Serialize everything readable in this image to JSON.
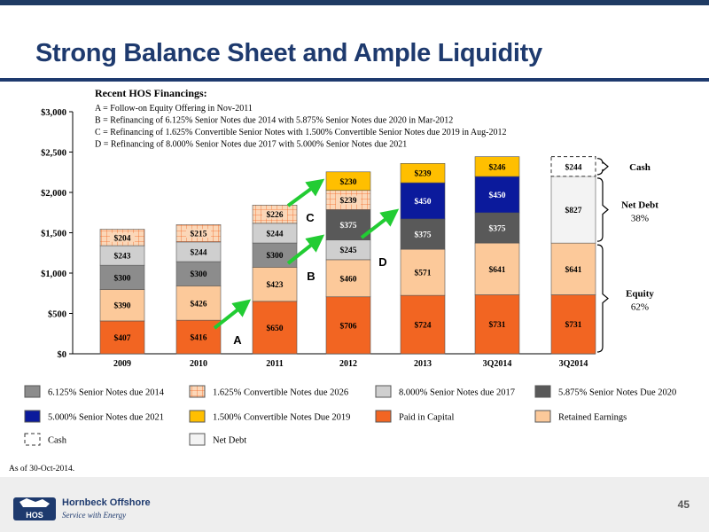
{
  "slide": {
    "title": "Strong Balance Sheet and Ample Liquidity",
    "footnote": "As of 30-Oct-2014.",
    "page_number": "45",
    "company": "Hornbeck Offshore",
    "tagline": "Service with Energy",
    "logo_text": "HOS"
  },
  "colors": {
    "paid_in_capital": "#f26522",
    "retained_earnings": "#fcc99a",
    "sn_6125": "#8c8c8c",
    "conv_1625": "#fbd7b8",
    "sn_8000": "#cfcfcf",
    "sn_5875": "#595959",
    "sn_5000": "#0b1a9c",
    "conv_1500": "#ffbf00",
    "net_debt": "#f3f3f3",
    "arrow": "#22cc33",
    "title": "#1e3a6e"
  },
  "chart_data": {
    "type": "bar",
    "stacked": true,
    "categories": [
      "2009",
      "2010",
      "2011",
      "2012",
      "2013",
      "3Q2014",
      "3Q2014"
    ],
    "ylim": [
      0,
      3000
    ],
    "yticks": [
      0,
      500,
      1000,
      1500,
      2000,
      2500,
      3000
    ],
    "ytick_labels": [
      "$0",
      "$500",
      "$1,000",
      "$1,500",
      "$2,000",
      "$2,500",
      "$3,000"
    ],
    "grid": false,
    "series": [
      {
        "name": "Paid in Capital",
        "key": "paid_in_capital",
        "values": [
          407,
          416,
          650,
          706,
          724,
          731,
          731
        ],
        "labels": [
          "$407",
          "$416",
          "$650",
          "$706",
          "$724",
          "$731",
          "$731"
        ]
      },
      {
        "name": "Retained Earnings",
        "key": "retained_earnings",
        "values": [
          390,
          426,
          423,
          460,
          571,
          641,
          641
        ],
        "labels": [
          "$390",
          "$426",
          "$423",
          "$460",
          "$571",
          "$641",
          "$641"
        ]
      },
      {
        "name": "6.125% Senior Notes due 2014",
        "key": "sn_6125",
        "values": [
          300,
          300,
          300,
          0,
          0,
          0,
          0
        ],
        "labels": [
          "$300",
          "$300",
          "$300",
          "",
          "",
          "",
          ""
        ]
      },
      {
        "name": "8.000% Senior Notes due 2017",
        "key": "sn_8000",
        "values": [
          243,
          244,
          244,
          245,
          0,
          0,
          0
        ],
        "labels": [
          "$243",
          "$244",
          "$244",
          "$245",
          "",
          "",
          ""
        ]
      },
      {
        "name": "5.875% Senior Notes Due 2020",
        "key": "sn_5875",
        "values": [
          0,
          0,
          0,
          375,
          375,
          375,
          0
        ],
        "labels": [
          "",
          "",
          "",
          "$375",
          "$375",
          "$375",
          ""
        ]
      },
      {
        "name": "1.625% Convertible Notes due 2026",
        "key": "conv_1625",
        "values": [
          204,
          215,
          226,
          239,
          0,
          0,
          0
        ],
        "labels": [
          "$204",
          "$215",
          "$226",
          "$239",
          "",
          "",
          ""
        ]
      },
      {
        "name": "5.000% Senior Notes due 2021",
        "key": "sn_5000",
        "values": [
          0,
          0,
          0,
          0,
          450,
          450,
          0
        ],
        "labels": [
          "",
          "",
          "",
          "",
          "$450",
          "$450",
          ""
        ]
      },
      {
        "name": "1.500% Convertible Notes Due 2019",
        "key": "conv_1500",
        "values": [
          0,
          0,
          0,
          230,
          239,
          246,
          0
        ],
        "labels": [
          "",
          "",
          "",
          "$230",
          "$239",
          "$246",
          ""
        ]
      },
      {
        "name": "Net Debt",
        "key": "net_debt",
        "values": [
          0,
          0,
          0,
          0,
          0,
          0,
          827
        ],
        "labels": [
          "",
          "",
          "",
          "",
          "",
          "",
          "$827"
        ]
      },
      {
        "name": "Cash",
        "key": "cash",
        "values": [
          0,
          0,
          0,
          0,
          0,
          0,
          244
        ],
        "labels": [
          "",
          "",
          "",
          "",
          "",
          "",
          "$244"
        ]
      }
    ],
    "legend": {
      "placement": "bottom",
      "items": [
        {
          "label": "6.125% Senior Notes due 2014",
          "key": "sn_6125"
        },
        {
          "label": "1.625% Convertible Notes due 2026",
          "key": "conv_1625"
        },
        {
          "label": "8.000% Senior Notes due 2017",
          "key": "sn_8000"
        },
        {
          "label": "5.875% Senior Notes Due 2020",
          "key": "sn_5875"
        },
        {
          "label": "5.000% Senior Notes due 2021",
          "key": "sn_5000"
        },
        {
          "label": "1.500% Convertible Notes Due 2019",
          "key": "conv_1500"
        },
        {
          "label": "Paid in Capital",
          "key": "paid_in_capital"
        },
        {
          "label": "Retained Earnings",
          "key": "retained_earnings"
        },
        {
          "label": "Cash",
          "key": "cash"
        },
        {
          "label": "Net Debt",
          "key": "net_debt"
        }
      ]
    },
    "annotation_box": {
      "title": "Recent HOS Financings:",
      "lines": [
        "A = Follow-on Equity Offering in Nov-2011",
        "B = Refinancing of 6.125% Senior Notes due 2014 with 5.875% Senior Notes due 2020 in Mar-2012",
        "C = Refinancing of 1.625% Convertible Senior Notes with 1.500% Convertible Senior Notes due 2019 in Aug-2012",
        "D = Refinancing of 8.000% Senior Notes due 2017 with 5.000% Senior Notes due 2021"
      ]
    },
    "arrow_labels": [
      "A",
      "B",
      "C",
      "D"
    ],
    "brackets": [
      {
        "label": "Cash"
      },
      {
        "label": "Net Debt",
        "sublabel": "38%"
      },
      {
        "label": "Equity",
        "sublabel": "62%"
      }
    ]
  }
}
